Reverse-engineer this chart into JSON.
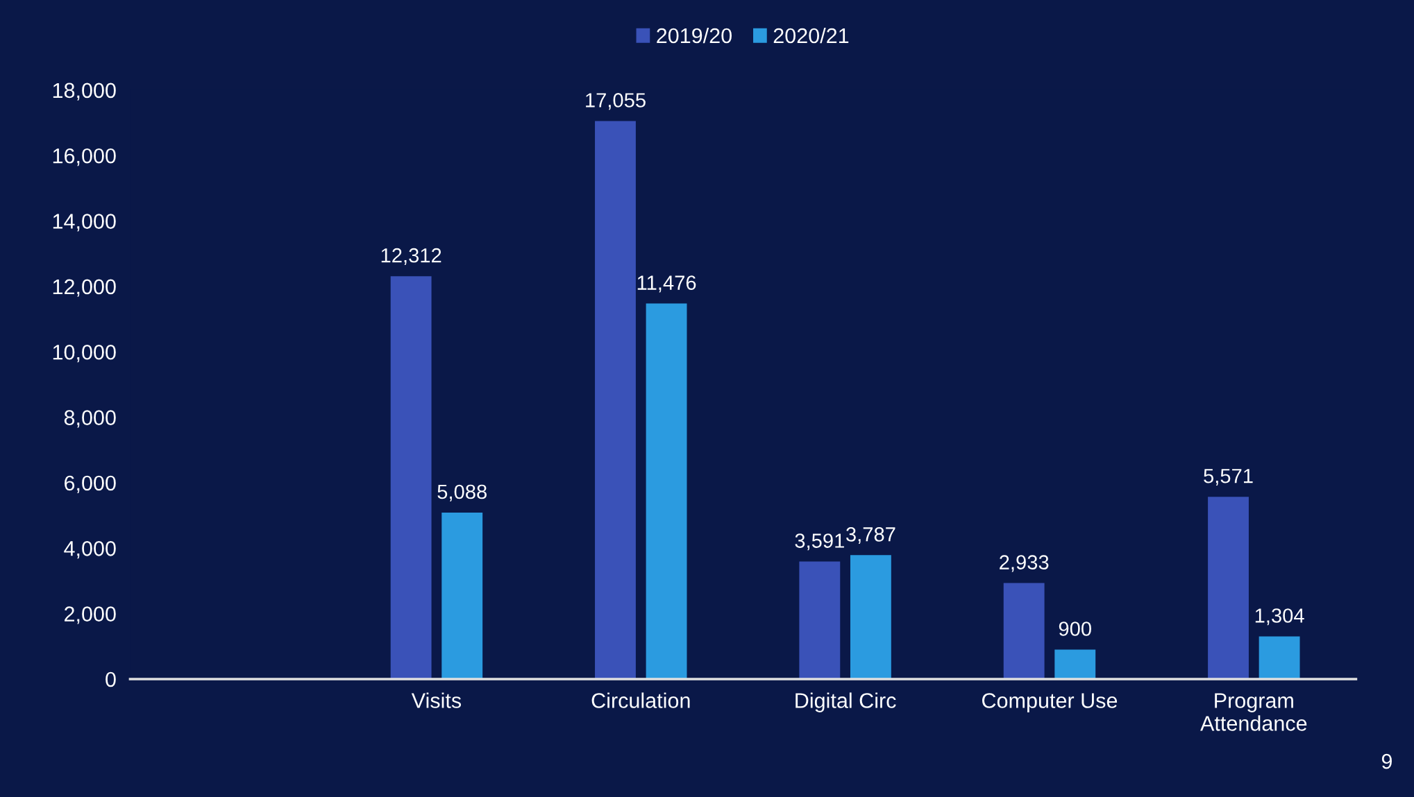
{
  "chart_data": {
    "type": "bar",
    "categories": [
      null,
      "Visits",
      "Circulation",
      "Digital Circ",
      "Computer Use",
      "Program Attendance"
    ],
    "series": [
      {
        "name": "2019/20",
        "color": "#3a52b8",
        "values": [
          null,
          12312,
          17055,
          3591,
          2933,
          5571
        ],
        "value_labels": [
          null,
          "12,312",
          "17,055",
          "3,591",
          "2,933",
          "5,571"
        ]
      },
      {
        "name": "2020/21",
        "color": "#2b9be0",
        "values": [
          null,
          5088,
          11476,
          3787,
          900,
          1304
        ],
        "value_labels": [
          null,
          "5,088",
          "11,476",
          "3,787",
          "900",
          "1,304"
        ]
      }
    ],
    "ylim": [
      0,
      18000
    ],
    "yticks": [
      {
        "value": 0,
        "label": "0"
      },
      {
        "value": 2000,
        "label": "2,000"
      },
      {
        "value": 4000,
        "label": "4,000"
      },
      {
        "value": 6000,
        "label": "6,000"
      },
      {
        "value": 8000,
        "label": "8,000"
      },
      {
        "value": 10000,
        "label": "10,000"
      },
      {
        "value": 12000,
        "label": "12,000"
      },
      {
        "value": 14000,
        "label": "14,000"
      },
      {
        "value": 16000,
        "label": "16,000"
      },
      {
        "value": 18000,
        "label": "18,000"
      }
    ],
    "grid": false,
    "legend": "top",
    "annotations": [
      "9"
    ]
  }
}
